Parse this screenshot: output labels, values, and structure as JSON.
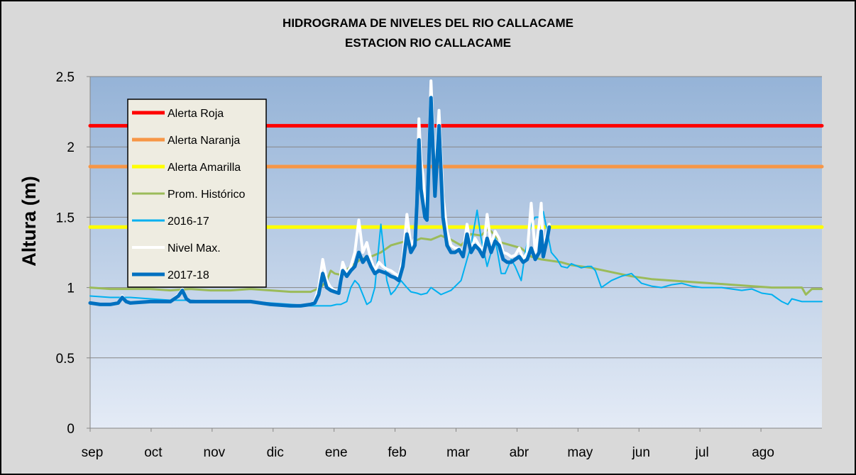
{
  "chart_data": {
    "type": "line",
    "title": "HIDROGRAMA DE NIVELES DEL RIO CALLACAME",
    "subtitle": "ESTACION RIO CALLACAME",
    "ylabel": "Altura (m)",
    "xlabel": "",
    "ylim": [
      0,
      2.5
    ],
    "yticks": [
      "0",
      "0.5",
      "1",
      "1.5",
      "2",
      "2.5"
    ],
    "xlim": [
      0,
      365
    ],
    "xticks": [
      "sep",
      "oct",
      "nov",
      "dic",
      "ene",
      "feb",
      "mar",
      "abr",
      "may",
      "jun",
      "jul",
      "ago"
    ],
    "grid": "horizontal",
    "legend_position": "top-left",
    "x_unit": "day of hydrological year (0 = 1 sep)",
    "series": [
      {
        "name": "Alerta Roja",
        "color": "#ff0000",
        "width": 5,
        "x": [
          0,
          365
        ],
        "y": [
          2.15,
          2.15
        ]
      },
      {
        "name": "Alerta Naranja",
        "color": "#f79646",
        "width": 5,
        "x": [
          0,
          365
        ],
        "y": [
          1.86,
          1.86
        ]
      },
      {
        "name": "Alerta Amarilla",
        "color": "#ffff00",
        "width": 5,
        "x": [
          0,
          365
        ],
        "y": [
          1.43,
          1.43
        ]
      },
      {
        "name": "Prom. Histórico",
        "color": "#9bbb59",
        "width": 3,
        "x": [
          0,
          10,
          20,
          30,
          40,
          50,
          60,
          70,
          80,
          90,
          100,
          110,
          115,
          118,
          120,
          122,
          125,
          130,
          135,
          140,
          145,
          150,
          155,
          158,
          160,
          165,
          170,
          175,
          178,
          180,
          185,
          190,
          195,
          198,
          200,
          205,
          210,
          215,
          220,
          225,
          230,
          235,
          240,
          250,
          260,
          270,
          280,
          290,
          300,
          310,
          320,
          330,
          340,
          355,
          357,
          360,
          365
        ],
        "y": [
          1.0,
          0.99,
          0.99,
          0.99,
          0.98,
          0.99,
          0.98,
          0.98,
          0.99,
          0.98,
          0.97,
          0.97,
          1.0,
          1.05,
          1.12,
          1.1,
          1.09,
          1.15,
          1.2,
          1.22,
          1.25,
          1.3,
          1.32,
          1.33,
          1.32,
          1.35,
          1.34,
          1.37,
          1.35,
          1.34,
          1.3,
          1.38,
          1.37,
          1.41,
          1.4,
          1.32,
          1.3,
          1.28,
          1.22,
          1.2,
          1.19,
          1.18,
          1.16,
          1.14,
          1.11,
          1.08,
          1.06,
          1.05,
          1.04,
          1.03,
          1.02,
          1.01,
          1.0,
          1.0,
          0.95,
          0.99,
          0.99
        ]
      },
      {
        "name": "2016-17",
        "color": "#00b0f0",
        "width": 2,
        "x": [
          0,
          10,
          20,
          30,
          40,
          50,
          60,
          70,
          80,
          90,
          100,
          110,
          115,
          120,
          123,
          125,
          128,
          130,
          132,
          134,
          136,
          138,
          140,
          142,
          145,
          148,
          150,
          152,
          155,
          158,
          160,
          163,
          165,
          168,
          170,
          175,
          180,
          185,
          188,
          190,
          193,
          195,
          198,
          200,
          202,
          205,
          207,
          210,
          212,
          215,
          217,
          220,
          222,
          224,
          226,
          228,
          230,
          233,
          235,
          238,
          240,
          245,
          248,
          250,
          252,
          255,
          260,
          265,
          270,
          275,
          280,
          285,
          290,
          295,
          300,
          305,
          310,
          315,
          320,
          325,
          330,
          335,
          340,
          342,
          345,
          348,
          350,
          355,
          360,
          365
        ],
        "y": [
          0.94,
          0.93,
          0.93,
          0.92,
          0.91,
          0.91,
          0.9,
          0.9,
          0.9,
          0.89,
          0.88,
          0.87,
          0.87,
          0.87,
          0.88,
          0.88,
          0.9,
          1.0,
          1.05,
          1.02,
          0.95,
          0.88,
          0.9,
          1.0,
          1.45,
          1.05,
          0.95,
          0.98,
          1.05,
          1.0,
          0.97,
          0.96,
          0.95,
          0.96,
          1.0,
          0.95,
          0.98,
          1.05,
          1.2,
          1.3,
          1.55,
          1.35,
          1.15,
          1.25,
          1.35,
          1.1,
          1.1,
          1.2,
          1.15,
          1.05,
          1.25,
          1.45,
          1.5,
          1.5,
          1.54,
          1.4,
          1.25,
          1.2,
          1.15,
          1.14,
          1.17,
          1.14,
          1.15,
          1.15,
          1.12,
          1.0,
          1.05,
          1.08,
          1.1,
          1.03,
          1.01,
          1.0,
          1.02,
          1.03,
          1.01,
          1.0,
          1.0,
          1.0,
          0.99,
          0.98,
          0.99,
          0.96,
          0.95,
          0.93,
          0.9,
          0.88,
          0.92,
          0.9,
          0.9,
          0.9
        ]
      },
      {
        "name": "Nivel Max.",
        "color": "#ffffff",
        "width": 4,
        "x": [
          0,
          5,
          10,
          14,
          16,
          18,
          20,
          30,
          40,
          44,
          46,
          48,
          50,
          60,
          70,
          80,
          90,
          100,
          105,
          110,
          112,
          114,
          116,
          118,
          120,
          122,
          124,
          125,
          126,
          128,
          130,
          132,
          134,
          136,
          138,
          140,
          142,
          144,
          146,
          148,
          150,
          152,
          154,
          156,
          158,
          160,
          162,
          163,
          164,
          165,
          166,
          167,
          168,
          170,
          172,
          174,
          176,
          178,
          180,
          182,
          184,
          186,
          188,
          190,
          192,
          194,
          196,
          198,
          200,
          202,
          204,
          206,
          208,
          210,
          212,
          214,
          216,
          218,
          220,
          222,
          224,
          225,
          226,
          228,
          229
        ],
        "y": [
          0.89,
          0.88,
          0.88,
          0.89,
          0.94,
          0.9,
          0.89,
          0.9,
          0.9,
          0.95,
          0.99,
          0.92,
          0.9,
          0.9,
          0.9,
          0.9,
          0.88,
          0.87,
          0.87,
          0.88,
          0.9,
          1.0,
          1.2,
          1.05,
          1.0,
          0.98,
          0.97,
          1.1,
          1.18,
          1.1,
          1.15,
          1.25,
          1.48,
          1.25,
          1.32,
          1.2,
          1.12,
          1.18,
          1.15,
          1.13,
          1.12,
          1.1,
          1.08,
          1.2,
          1.52,
          1.3,
          1.35,
          1.65,
          2.2,
          1.9,
          1.8,
          1.6,
          1.55,
          2.47,
          1.8,
          2.26,
          1.65,
          1.4,
          1.3,
          1.28,
          1.28,
          1.25,
          1.45,
          1.27,
          1.35,
          1.3,
          1.25,
          1.52,
          1.3,
          1.4,
          1.35,
          1.25,
          1.24,
          1.22,
          1.23,
          1.28,
          1.2,
          1.25,
          1.6,
          1.25,
          1.45,
          1.6,
          1.28,
          1.4,
          1.45
        ]
      },
      {
        "name": "2017-18",
        "color": "#0070c0",
        "width": 5,
        "x": [
          0,
          5,
          10,
          14,
          16,
          18,
          20,
          30,
          40,
          44,
          46,
          48,
          50,
          60,
          70,
          80,
          90,
          100,
          105,
          110,
          112,
          114,
          116,
          118,
          120,
          122,
          124,
          125,
          126,
          128,
          130,
          132,
          134,
          136,
          138,
          140,
          142,
          144,
          146,
          148,
          150,
          152,
          154,
          156,
          158,
          160,
          162,
          163,
          164,
          165,
          166,
          167,
          168,
          170,
          172,
          174,
          176,
          178,
          180,
          182,
          184,
          186,
          188,
          190,
          192,
          194,
          196,
          198,
          200,
          202,
          204,
          206,
          208,
          210,
          212,
          214,
          216,
          218,
          220,
          222,
          224,
          225,
          226,
          228,
          229
        ],
        "y": [
          0.89,
          0.88,
          0.88,
          0.89,
          0.93,
          0.9,
          0.89,
          0.9,
          0.9,
          0.94,
          0.98,
          0.92,
          0.9,
          0.9,
          0.9,
          0.9,
          0.88,
          0.87,
          0.87,
          0.88,
          0.89,
          0.95,
          1.1,
          1.0,
          0.98,
          0.97,
          0.96,
          1.05,
          1.12,
          1.08,
          1.12,
          1.15,
          1.25,
          1.18,
          1.22,
          1.15,
          1.1,
          1.12,
          1.11,
          1.1,
          1.08,
          1.07,
          1.05,
          1.15,
          1.38,
          1.25,
          1.3,
          1.6,
          2.05,
          1.7,
          1.6,
          1.5,
          1.48,
          2.35,
          1.65,
          2.15,
          1.5,
          1.3,
          1.25,
          1.25,
          1.27,
          1.22,
          1.38,
          1.25,
          1.3,
          1.27,
          1.22,
          1.35,
          1.25,
          1.33,
          1.3,
          1.2,
          1.18,
          1.18,
          1.2,
          1.22,
          1.18,
          1.2,
          1.28,
          1.2,
          1.25,
          1.4,
          1.22,
          1.35,
          1.43
        ]
      }
    ]
  }
}
